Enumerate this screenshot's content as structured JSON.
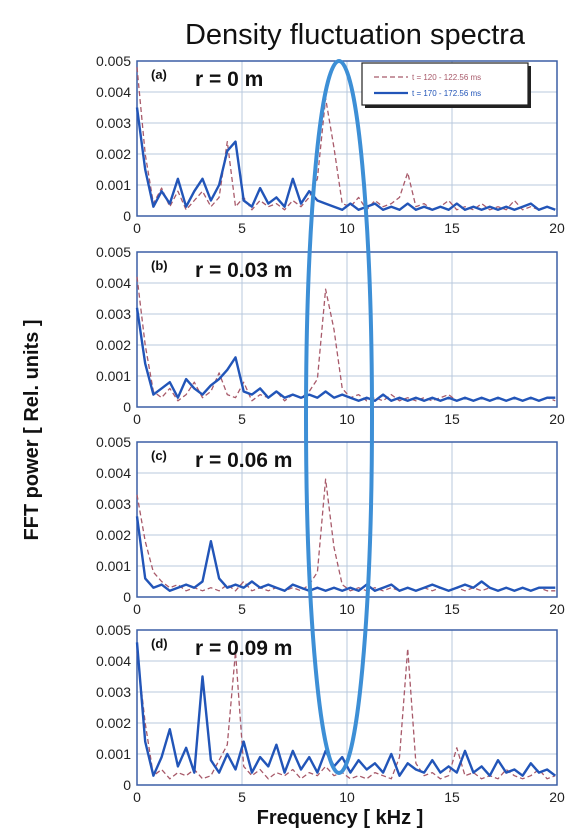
{
  "figure": {
    "title": "Density fluctuation spectra",
    "xlabel": "Frequency [ kHz ]",
    "ylabel": "FFT power [ Rel. units ]"
  },
  "colors": {
    "series_early": "#a85a6a",
    "series_late": "#2255b8",
    "highlight_ellipse": "#3d8fd6",
    "grid": "#b8c8de",
    "frame": "#3b5fa6"
  },
  "chart_data": [
    {
      "type": "line",
      "panel_label": "(a)",
      "radius_label": "r = 0 m",
      "xlim": [
        0,
        20
      ],
      "ylim": [
        0,
        0.005
      ],
      "x_ticks": [
        "0",
        "5",
        "10",
        "15",
        "20"
      ],
      "y_ticks": [
        "0",
        "0.001",
        "0.002",
        "0.003",
        "0.004",
        "0.005"
      ],
      "grid": true,
      "legend": {
        "placement": "top-right",
        "entries": [
          "t = 120 - 122.56 ms",
          "t = 170 - 172.56 ms"
        ]
      },
      "series": [
        {
          "name": "t = 120 - 122.56 ms",
          "style": "dashed",
          "x": [
            0,
            0.39,
            0.78,
            1.17,
            1.56,
            1.95,
            2.34,
            2.73,
            3.12,
            3.52,
            3.91,
            4.3,
            4.69,
            5.08,
            5.47,
            5.86,
            6.25,
            6.64,
            7.03,
            7.42,
            7.81,
            8.2,
            8.59,
            8.98,
            9.38,
            9.77,
            10.16,
            10.55,
            10.94,
            11.33,
            11.72,
            12.11,
            12.5,
            12.89,
            13.28,
            13.67,
            14.06,
            14.45,
            14.84,
            15.23,
            15.62,
            16.02,
            16.41,
            16.8,
            17.19,
            17.58,
            17.97,
            18.36,
            18.75,
            19.14,
            19.53,
            19.92
          ],
          "values": [
            0.0048,
            0.002,
            0.0004,
            0.0009,
            0.0003,
            0.0008,
            0.0002,
            0.0005,
            0.0008,
            0.0003,
            0.0006,
            0.0024,
            0.0003,
            0.0006,
            0.0002,
            0.0005,
            0.0003,
            0.0004,
            0.0002,
            0.0005,
            0.0003,
            0.0006,
            0.0012,
            0.0038,
            0.0022,
            0.0004,
            0.0003,
            0.0006,
            0.0002,
            0.0005,
            0.0003,
            0.0004,
            0.0006,
            0.0014,
            0.0003,
            0.0004,
            0.0002,
            0.0003,
            0.0005,
            0.0002,
            0.0003,
            0.0002,
            0.0004,
            0.0002,
            0.0003,
            0.0002,
            0.0005,
            0.0002,
            0.0003,
            0.0002,
            0.0003,
            0.0002
          ]
        },
        {
          "name": "t = 170 - 172.56 ms",
          "style": "solid",
          "x": [
            0,
            0.39,
            0.78,
            1.17,
            1.56,
            1.95,
            2.34,
            2.73,
            3.12,
            3.52,
            3.91,
            4.3,
            4.69,
            5.08,
            5.47,
            5.86,
            6.25,
            6.64,
            7.03,
            7.42,
            7.81,
            8.2,
            8.59,
            8.98,
            9.38,
            9.77,
            10.16,
            10.55,
            10.94,
            11.33,
            11.72,
            12.11,
            12.5,
            12.89,
            13.28,
            13.67,
            14.06,
            14.45,
            14.84,
            15.23,
            15.62,
            16.02,
            16.41,
            16.8,
            17.19,
            17.58,
            17.97,
            18.36,
            18.75,
            19.14,
            19.53,
            19.92
          ],
          "values": [
            0.0035,
            0.0015,
            0.0003,
            0.0008,
            0.0004,
            0.0012,
            0.0003,
            0.0008,
            0.0012,
            0.0005,
            0.001,
            0.0021,
            0.0024,
            0.0005,
            0.0003,
            0.0009,
            0.0004,
            0.0006,
            0.0003,
            0.0012,
            0.0004,
            0.0008,
            0.0005,
            0.0004,
            0.0003,
            0.0002,
            0.0004,
            0.0002,
            0.0003,
            0.0004,
            0.0002,
            0.0003,
            0.0002,
            0.0004,
            0.0002,
            0.0003,
            0.0002,
            0.0003,
            0.0002,
            0.0004,
            0.0002,
            0.0003,
            0.0002,
            0.0003,
            0.0002,
            0.0003,
            0.0002,
            0.0003,
            0.0004,
            0.0002,
            0.0003,
            0.0002
          ]
        }
      ]
    },
    {
      "type": "line",
      "panel_label": "(b)",
      "radius_label": "r = 0.03 m",
      "xlim": [
        0,
        20
      ],
      "ylim": [
        0,
        0.005
      ],
      "x_ticks": [
        "0",
        "5",
        "10",
        "15",
        "20"
      ],
      "y_ticks": [
        "0",
        "0.001",
        "0.002",
        "0.003",
        "0.004",
        "0.005"
      ],
      "grid": true,
      "series": [
        {
          "name": "t = 120 - 122.56 ms",
          "style": "dashed",
          "x": [
            0,
            0.39,
            0.78,
            1.17,
            1.56,
            1.95,
            2.34,
            2.73,
            3.12,
            3.52,
            3.91,
            4.3,
            4.69,
            5.08,
            5.47,
            5.86,
            6.25,
            6.64,
            7.03,
            7.42,
            7.81,
            8.2,
            8.59,
            8.98,
            9.38,
            9.77,
            10.16,
            10.55,
            10.94,
            11.33,
            11.72,
            12.11,
            12.5,
            12.89,
            13.28,
            13.67,
            14.06,
            14.45,
            14.84,
            15.23,
            15.62,
            16.02,
            16.41,
            16.8,
            17.19,
            17.58,
            17.97,
            18.36,
            18.75,
            19.14,
            19.53,
            19.92
          ],
          "values": [
            0.0042,
            0.002,
            0.0005,
            0.0003,
            0.0006,
            0.0002,
            0.0004,
            0.0008,
            0.0003,
            0.0005,
            0.0011,
            0.0004,
            0.0003,
            0.0008,
            0.0002,
            0.0004,
            0.0003,
            0.0005,
            0.0002,
            0.0004,
            0.0003,
            0.0005,
            0.0009,
            0.0038,
            0.0025,
            0.0006,
            0.0003,
            0.0004,
            0.0002,
            0.0003,
            0.0002,
            0.0004,
            0.0002,
            0.0003,
            0.0002,
            0.0003,
            0.0002,
            0.0003,
            0.0004,
            0.0002,
            0.0003,
            0.0002,
            0.0003,
            0.0002,
            0.0003,
            0.0002,
            0.0003,
            0.0002,
            0.0003,
            0.0002,
            0.0003,
            0.0002
          ]
        },
        {
          "name": "t = 170 - 172.56 ms",
          "style": "solid",
          "x": [
            0,
            0.39,
            0.78,
            1.17,
            1.56,
            1.95,
            2.34,
            2.73,
            3.12,
            3.52,
            3.91,
            4.3,
            4.69,
            5.08,
            5.47,
            5.86,
            6.25,
            6.64,
            7.03,
            7.42,
            7.81,
            8.2,
            8.59,
            8.98,
            9.38,
            9.77,
            10.16,
            10.55,
            10.94,
            11.33,
            11.72,
            12.11,
            12.5,
            12.89,
            13.28,
            13.67,
            14.06,
            14.45,
            14.84,
            15.23,
            15.62,
            16.02,
            16.41,
            16.8,
            17.19,
            17.58,
            17.97,
            18.36,
            18.75,
            19.14,
            19.53,
            19.92
          ],
          "values": [
            0.0032,
            0.0014,
            0.0004,
            0.0006,
            0.0008,
            0.0003,
            0.0009,
            0.0006,
            0.0004,
            0.0007,
            0.0009,
            0.0012,
            0.0016,
            0.0005,
            0.0004,
            0.0006,
            0.0003,
            0.0005,
            0.0003,
            0.0004,
            0.0003,
            0.0004,
            0.0003,
            0.0005,
            0.0003,
            0.0004,
            0.0003,
            0.0002,
            0.0003,
            0.0002,
            0.0004,
            0.0002,
            0.0003,
            0.0002,
            0.0003,
            0.0002,
            0.0003,
            0.0002,
            0.0003,
            0.0002,
            0.0003,
            0.0002,
            0.0003,
            0.0002,
            0.0003,
            0.0002,
            0.0003,
            0.0002,
            0.0003,
            0.0002,
            0.0003,
            0.0003
          ]
        }
      ]
    },
    {
      "type": "line",
      "panel_label": "(c)",
      "radius_label": "r = 0.06 m",
      "xlim": [
        0,
        20
      ],
      "ylim": [
        0,
        0.005
      ],
      "x_ticks": [
        "0",
        "5",
        "10",
        "15",
        "20"
      ],
      "y_ticks": [
        "0",
        "0.001",
        "0.002",
        "0.003",
        "0.004",
        "0.005"
      ],
      "grid": true,
      "series": [
        {
          "name": "t = 120 - 122.56 ms",
          "style": "dashed",
          "x": [
            0,
            0.39,
            0.78,
            1.17,
            1.56,
            1.95,
            2.34,
            2.73,
            3.12,
            3.52,
            3.91,
            4.3,
            4.69,
            5.08,
            5.47,
            5.86,
            6.25,
            6.64,
            7.03,
            7.42,
            7.81,
            8.2,
            8.59,
            8.98,
            9.38,
            9.77,
            10.16,
            10.55,
            10.94,
            11.33,
            11.72,
            12.11,
            12.5,
            12.89,
            13.28,
            13.67,
            14.06,
            14.45,
            14.84,
            15.23,
            15.62,
            16.02,
            16.41,
            16.8,
            17.19,
            17.58,
            17.97,
            18.36,
            18.75,
            19.14,
            19.53,
            19.92
          ],
          "values": [
            0.0033,
            0.0018,
            0.0008,
            0.0005,
            0.0003,
            0.0004,
            0.0002,
            0.0003,
            0.0002,
            0.0003,
            0.0002,
            0.0004,
            0.0002,
            0.0005,
            0.0002,
            0.0003,
            0.0002,
            0.0003,
            0.0002,
            0.0003,
            0.0002,
            0.0004,
            0.0008,
            0.0038,
            0.0016,
            0.0004,
            0.0002,
            0.0003,
            0.0002,
            0.0003,
            0.0002,
            0.0003,
            0.0002,
            0.0003,
            0.0002,
            0.0003,
            0.0002,
            0.0003,
            0.0002,
            0.0003,
            0.0002,
            0.0003,
            0.0002,
            0.0003,
            0.0002,
            0.0003,
            0.0002,
            0.0003,
            0.0002,
            0.0003,
            0.0002,
            0.0002
          ]
        },
        {
          "name": "t = 170 - 172.56 ms",
          "style": "solid",
          "x": [
            0,
            0.39,
            0.78,
            1.17,
            1.56,
            1.95,
            2.34,
            2.73,
            3.12,
            3.52,
            3.91,
            4.3,
            4.69,
            5.08,
            5.47,
            5.86,
            6.25,
            6.64,
            7.03,
            7.42,
            7.81,
            8.2,
            8.59,
            8.98,
            9.38,
            9.77,
            10.16,
            10.55,
            10.94,
            11.33,
            11.72,
            12.11,
            12.5,
            12.89,
            13.28,
            13.67,
            14.06,
            14.45,
            14.84,
            15.23,
            15.62,
            16.02,
            16.41,
            16.8,
            17.19,
            17.58,
            17.97,
            18.36,
            18.75,
            19.14,
            19.53,
            19.92
          ],
          "values": [
            0.0026,
            0.0006,
            0.0003,
            0.0004,
            0.0002,
            0.0003,
            0.0004,
            0.0003,
            0.0005,
            0.0018,
            0.0006,
            0.0003,
            0.0004,
            0.0003,
            0.0005,
            0.0003,
            0.0004,
            0.0003,
            0.0002,
            0.0004,
            0.0003,
            0.0002,
            0.0003,
            0.0002,
            0.0003,
            0.0002,
            0.0003,
            0.0002,
            0.0004,
            0.0002,
            0.0003,
            0.0004,
            0.0002,
            0.0003,
            0.0002,
            0.0003,
            0.0004,
            0.0003,
            0.0002,
            0.0003,
            0.0004,
            0.0003,
            0.0005,
            0.0003,
            0.0002,
            0.0003,
            0.0002,
            0.0003,
            0.0002,
            0.0003,
            0.0003,
            0.0003
          ]
        }
      ]
    },
    {
      "type": "line",
      "panel_label": "(d)",
      "radius_label": "r = 0.09 m",
      "xlim": [
        0,
        20
      ],
      "ylim": [
        0,
        0.005
      ],
      "x_ticks": [
        "0",
        "5",
        "10",
        "15",
        "20"
      ],
      "y_ticks": [
        "0",
        "0.001",
        "0.002",
        "0.003",
        "0.004",
        "0.005"
      ],
      "grid": true,
      "series": [
        {
          "name": "t = 120 - 122.56 ms",
          "style": "dashed",
          "x": [
            0,
            0.39,
            0.78,
            1.17,
            1.56,
            1.95,
            2.34,
            2.73,
            3.12,
            3.52,
            3.91,
            4.3,
            4.69,
            5.08,
            5.47,
            5.86,
            6.25,
            6.64,
            7.03,
            7.42,
            7.81,
            8.2,
            8.59,
            8.98,
            9.38,
            9.77,
            10.16,
            10.55,
            10.94,
            11.33,
            11.72,
            12.11,
            12.5,
            12.89,
            13.28,
            13.67,
            14.06,
            14.45,
            14.84,
            15.23,
            15.62,
            16.02,
            16.41,
            16.8,
            17.19,
            17.58,
            17.97,
            18.36,
            18.75,
            19.14,
            19.53,
            19.92
          ],
          "values": [
            0.0043,
            0.002,
            0.0003,
            0.0005,
            0.0002,
            0.0004,
            0.0003,
            0.0005,
            0.0002,
            0.0003,
            0.0008,
            0.0013,
            0.0043,
            0.0006,
            0.0003,
            0.0005,
            0.0002,
            0.0004,
            0.0003,
            0.0005,
            0.0002,
            0.0004,
            0.0003,
            0.0006,
            0.0003,
            0.0004,
            0.0002,
            0.0003,
            0.0002,
            0.0004,
            0.0003,
            0.0002,
            0.0009,
            0.0044,
            0.0007,
            0.0003,
            0.0004,
            0.0002,
            0.0003,
            0.0012,
            0.0003,
            0.0004,
            0.0002,
            0.0003,
            0.0002,
            0.0005,
            0.0003,
            0.0002,
            0.0003,
            0.0005,
            0.0002,
            0.0003
          ]
        },
        {
          "name": "t = 170 - 172.56 ms",
          "style": "solid",
          "x": [
            0,
            0.39,
            0.78,
            1.17,
            1.56,
            1.95,
            2.34,
            2.73,
            3.12,
            3.52,
            3.91,
            4.3,
            4.69,
            5.08,
            5.47,
            5.86,
            6.25,
            6.64,
            7.03,
            7.42,
            7.81,
            8.2,
            8.59,
            8.98,
            9.38,
            9.77,
            10.16,
            10.55,
            10.94,
            11.33,
            11.72,
            12.11,
            12.5,
            12.89,
            13.28,
            13.67,
            14.06,
            14.45,
            14.84,
            15.23,
            15.62,
            16.02,
            16.41,
            16.8,
            17.19,
            17.58,
            17.97,
            18.36,
            18.75,
            19.14,
            19.53,
            19.92
          ],
          "values": [
            0.0046,
            0.0014,
            0.0003,
            0.0009,
            0.0018,
            0.0006,
            0.0012,
            0.0004,
            0.0035,
            0.0008,
            0.0004,
            0.001,
            0.0005,
            0.0014,
            0.0004,
            0.0009,
            0.0006,
            0.0013,
            0.0004,
            0.0011,
            0.0005,
            0.0009,
            0.0004,
            0.0011,
            0.0006,
            0.0009,
            0.0004,
            0.0008,
            0.0005,
            0.0007,
            0.0004,
            0.001,
            0.0003,
            0.0007,
            0.0005,
            0.0004,
            0.0008,
            0.0004,
            0.0006,
            0.0004,
            0.0011,
            0.0004,
            0.0006,
            0.0003,
            0.0008,
            0.0004,
            0.0005,
            0.0003,
            0.0007,
            0.0004,
            0.0005,
            0.0003
          ]
        }
      ]
    }
  ]
}
